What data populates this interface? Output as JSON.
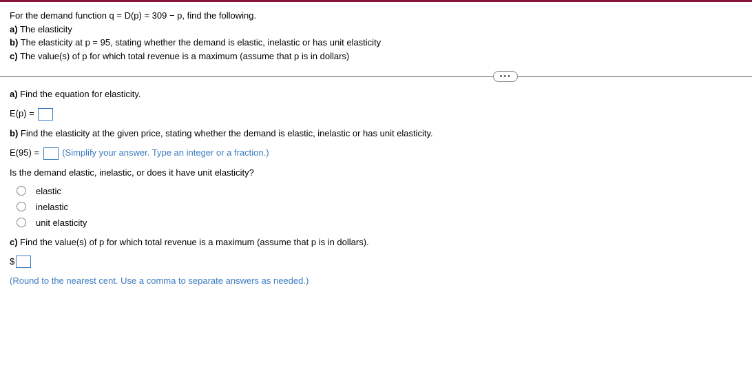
{
  "header": {
    "intro": "For the demand function q = D(p) = 309 − p, find the following.",
    "a": "a)",
    "a_text": " The elasticity",
    "b": "b)",
    "b_text": " The elasticity at p = 95, stating whether the demand is elastic, inelastic or has unit elasticity",
    "c": "c)",
    "c_text": " The value(s) of p for which total revenue is a maximum (assume that p is in dollars)"
  },
  "ellipsis": "•••",
  "partA": {
    "label": "a)",
    "text": " Find the equation for elasticity.",
    "lhs": "E(p) = "
  },
  "partB": {
    "label": "b)",
    "text": " Find the elasticity at the given price, stating whether the demand is elastic, inelastic or has unit elasticity.",
    "lhs": "E(95) = ",
    "hint": " (Simplify your answer. Type an integer or a fraction.)",
    "question": "Is the demand elastic, inelastic, or does it have unit elasticity?",
    "options": [
      {
        "label": "elastic"
      },
      {
        "label": "inelastic"
      },
      {
        "label": "unit elasticity"
      }
    ]
  },
  "partC": {
    "label": "c)",
    "text": " Find the value(s) of p for which total revenue is a maximum (assume that p is in dollars).",
    "currency": "$",
    "hint": "(Round to the nearest cent. Use a comma to separate answers as needed.)"
  }
}
